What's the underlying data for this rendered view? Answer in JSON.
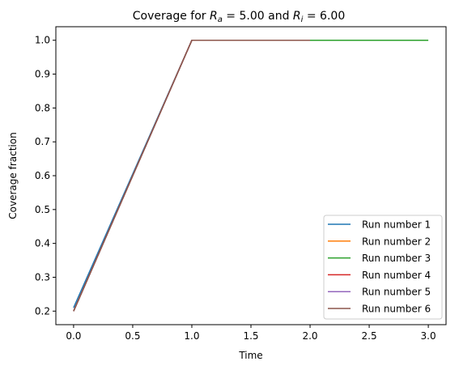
{
  "chart_data": {
    "type": "line",
    "title": {
      "prefix": "Coverage for ",
      "ra_symbol": "R",
      "ra_sub": "a",
      "ra_value": " = 5.00 and ",
      "ri_symbol": "R",
      "ri_sub": "i",
      "ri_value": " = 6.00"
    },
    "xlabel": "Time",
    "ylabel": "Coverage fraction",
    "xlim": [
      -0.15,
      3.15
    ],
    "ylim": [
      0.16,
      1.04
    ],
    "xticks": [
      "0.0",
      "0.5",
      "1.0",
      "1.5",
      "2.0",
      "2.5",
      "3.0"
    ],
    "yticks": [
      "0.2",
      "0.3",
      "0.4",
      "0.5",
      "0.6",
      "0.7",
      "0.8",
      "0.9",
      "1.0"
    ],
    "grid": false,
    "legend_position": "lower-right",
    "series": [
      {
        "name": "Run number 1",
        "color": "#1f77b4",
        "x": [
          0,
          1,
          2
        ],
        "y": [
          0.21,
          1.0,
          1.0
        ]
      },
      {
        "name": "Run number 2",
        "color": "#ff7f0e",
        "x": [
          0,
          1,
          2
        ],
        "y": [
          0.2,
          1.0,
          1.0
        ]
      },
      {
        "name": "Run number 3",
        "color": "#2ca02c",
        "x": [
          0,
          1,
          2,
          3
        ],
        "y": [
          0.2,
          1.0,
          1.0,
          1.0
        ]
      },
      {
        "name": "Run number 4",
        "color": "#d62728",
        "x": [
          0,
          1,
          2
        ],
        "y": [
          0.2,
          1.0,
          1.0
        ]
      },
      {
        "name": "Run number 5",
        "color": "#9467bd",
        "x": [
          0,
          1,
          2
        ],
        "y": [
          0.2,
          1.0,
          1.0
        ]
      },
      {
        "name": "Run number 6",
        "color": "#8c564b",
        "x": [
          0,
          1,
          2
        ],
        "y": [
          0.2,
          1.0,
          1.0
        ]
      }
    ]
  }
}
